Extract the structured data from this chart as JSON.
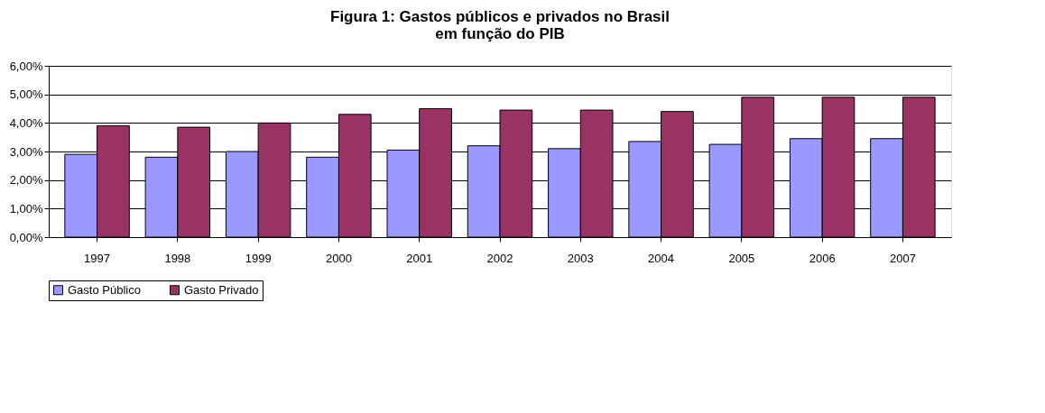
{
  "chart_data": {
    "type": "bar",
    "title": [
      "Figura 1: Gastos públicos e privados no Brasil",
      "em função do PIB"
    ],
    "categories": [
      "1997",
      "1998",
      "1999",
      "2000",
      "2001",
      "2002",
      "2003",
      "2004",
      "2005",
      "2006",
      "2007"
    ],
    "series": [
      {
        "name": "Gasto Público",
        "color": "#9999ff",
        "values": [
          2.9,
          2.8,
          3.0,
          2.8,
          3.05,
          3.2,
          3.1,
          3.35,
          3.25,
          3.45,
          3.45
        ]
      },
      {
        "name": "Gasto Privado",
        "color": "#993366",
        "values": [
          3.9,
          3.85,
          4.0,
          4.3,
          4.5,
          4.45,
          4.45,
          4.4,
          4.9,
          4.9,
          4.9
        ]
      }
    ],
    "ylim": [
      0,
      6
    ],
    "yticks": [
      {
        "value": 0,
        "label": "0,00%"
      },
      {
        "value": 1,
        "label": "1,00%"
      },
      {
        "value": 2,
        "label": "2,00%"
      },
      {
        "value": 3,
        "label": "3,00%"
      },
      {
        "value": 4,
        "label": "4,00%"
      },
      {
        "value": 5,
        "label": "5,00%"
      },
      {
        "value": 6,
        "label": "6,00%"
      }
    ],
    "grid": "y",
    "legend": "bottom"
  }
}
